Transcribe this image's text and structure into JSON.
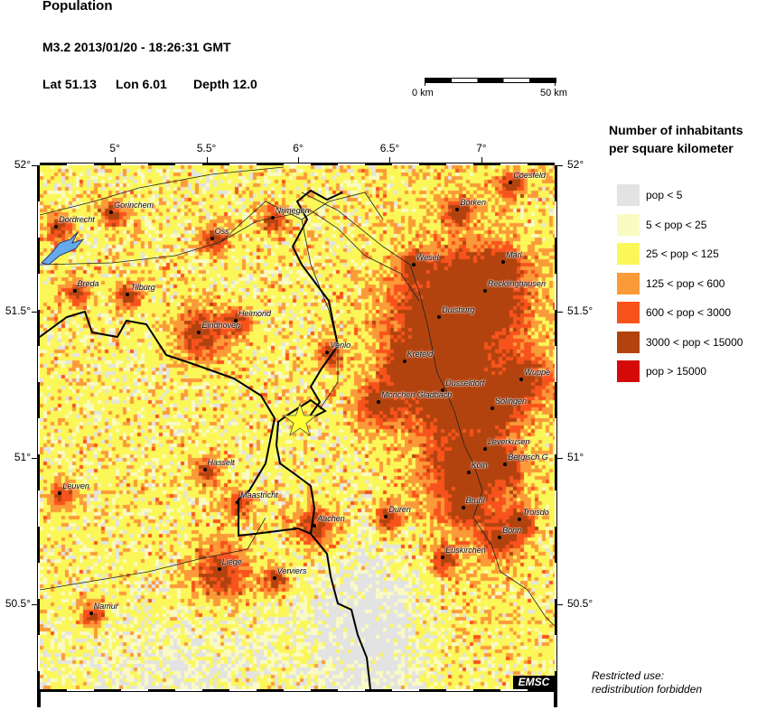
{
  "header": {
    "title": "Population",
    "event": "M3.2  2013/01/20 - 18:26:31 GMT",
    "lat_label": "Lat 51.13",
    "lon_label": "Lon  6.01",
    "depth_label": "Depth  12.0"
  },
  "scale_bar": {
    "start_label": "0 km",
    "end_label": "50 km"
  },
  "map": {
    "lon_range": [
      4.59,
      7.4
    ],
    "lat_range": [
      50.21,
      52.0
    ],
    "lon_ticks": [
      {
        "v": 5,
        "label": "5°"
      },
      {
        "v": 5.5,
        "label": "5.5°"
      },
      {
        "v": 6,
        "label": "6°"
      },
      {
        "v": 6.5,
        "label": "6.5°"
      },
      {
        "v": 7,
        "label": "7°"
      }
    ],
    "lat_ticks": [
      {
        "v": 52,
        "label": "52°"
      },
      {
        "v": 51.5,
        "label": "51.5°"
      },
      {
        "v": 51,
        "label": "51°"
      },
      {
        "v": 50.5,
        "label": "50.5°"
      }
    ],
    "epicenter": {
      "lat": 51.13,
      "lon": 6.01,
      "icon": "star-icon",
      "color": "#ffff33"
    },
    "cities": [
      {
        "name": "Coesfeld",
        "lon": 7.16,
        "lat": 51.94
      },
      {
        "name": "Borken",
        "lon": 6.87,
        "lat": 51.85
      },
      {
        "name": "Gorinchem",
        "lon": 4.98,
        "lat": 51.84
      },
      {
        "name": "Nijmegen",
        "lon": 5.86,
        "lat": 51.82
      },
      {
        "name": "Dordrecht",
        "lon": 4.68,
        "lat": 51.79
      },
      {
        "name": "Oss",
        "lon": 5.53,
        "lat": 51.75
      },
      {
        "name": "Wesel",
        "lon": 6.63,
        "lat": 51.66
      },
      {
        "name": "Marl",
        "lon": 7.12,
        "lat": 51.67
      },
      {
        "name": "Breda",
        "lon": 4.78,
        "lat": 51.57
      },
      {
        "name": "Tilburg",
        "lon": 5.07,
        "lat": 51.56
      },
      {
        "name": "Recklinghausen",
        "lon": 7.02,
        "lat": 51.57
      },
      {
        "name": "Duisburg",
        "lon": 6.77,
        "lat": 51.48
      },
      {
        "name": "Helmond",
        "lon": 5.66,
        "lat": 51.47
      },
      {
        "name": "Eindhoven",
        "lon": 5.46,
        "lat": 51.43
      },
      {
        "name": "Venlo",
        "lon": 6.16,
        "lat": 51.36
      },
      {
        "name": "Krefeld",
        "lon": 6.58,
        "lat": 51.33
      },
      {
        "name": "Wuppe",
        "lon": 7.22,
        "lat": 51.27
      },
      {
        "name": "Dusseldorf",
        "lon": 6.79,
        "lat": 51.23
      },
      {
        "name": "Monchen Gladbach",
        "lon": 6.44,
        "lat": 51.19
      },
      {
        "name": "Solingen",
        "lon": 7.06,
        "lat": 51.17
      },
      {
        "name": "Leverkusen",
        "lon": 7.02,
        "lat": 51.03
      },
      {
        "name": "Hasselt",
        "lon": 5.49,
        "lat": 50.96
      },
      {
        "name": "Bergisch G",
        "lon": 7.13,
        "lat": 50.98
      },
      {
        "name": "Koln",
        "lon": 6.93,
        "lat": 50.95
      },
      {
        "name": "Leuven",
        "lon": 4.7,
        "lat": 50.88
      },
      {
        "name": "Maastricht",
        "lon": 5.67,
        "lat": 50.85
      },
      {
        "name": "Bruhl",
        "lon": 6.9,
        "lat": 50.83
      },
      {
        "name": "Duren",
        "lon": 6.48,
        "lat": 50.8
      },
      {
        "name": "Troisdo",
        "lon": 7.21,
        "lat": 50.79
      },
      {
        "name": "Aachen",
        "lon": 6.09,
        "lat": 50.77
      },
      {
        "name": "Bonn",
        "lon": 7.1,
        "lat": 50.73
      },
      {
        "name": "Euskirchen",
        "lon": 6.79,
        "lat": 50.66
      },
      {
        "name": "Liege",
        "lon": 5.57,
        "lat": 50.62
      },
      {
        "name": "Verviers",
        "lon": 5.87,
        "lat": 50.59
      },
      {
        "name": "Namur",
        "lon": 4.87,
        "lat": 50.47
      }
    ],
    "badge": "EMSC",
    "water_color": "#66aaee"
  },
  "legend": {
    "title_line1": "Number of inhabitants",
    "title_line2": "per square kilometer",
    "items": [
      {
        "label": "pop < 5",
        "color": "#e3e3e3"
      },
      {
        "label": "5 < pop < 25",
        "color": "#fafac4"
      },
      {
        "label": "25 < pop < 125",
        "color": "#fbf759"
      },
      {
        "label": "125 < pop < 600",
        "color": "#fb9a38"
      },
      {
        "label": "600 < pop < 3000",
        "color": "#f8531c"
      },
      {
        "label": "3000 < pop < 15000",
        "color": "#b2430f"
      },
      {
        "label": "pop > 15000",
        "color": "#d40a0a"
      }
    ]
  },
  "notice": {
    "line1": "Restricted use:",
    "line2": "redistribution forbidden"
  }
}
